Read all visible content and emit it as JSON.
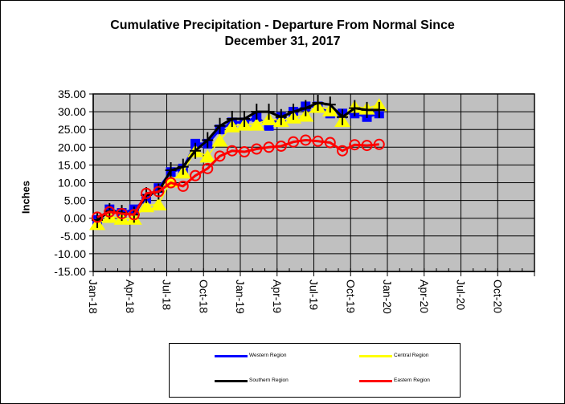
{
  "chart_data": {
    "type": "line",
    "title_line1": "Cumulative Precipitation - Departure From Normal Since",
    "title_line2": "December 31, 2017",
    "ylabel": "Inches",
    "xlabel": "",
    "ylim": [
      -15,
      35
    ],
    "yticks": [
      "35.00",
      "30.00",
      "25.00",
      "20.00",
      "15.00",
      "10.00",
      "5.00",
      "0.00",
      "-5.00",
      "-10.00",
      "-15.00"
    ],
    "ytick_values": [
      35,
      30,
      25,
      20,
      15,
      10,
      5,
      0,
      -5,
      -10,
      -15
    ],
    "xticks": [
      "Jan-18",
      "Apr-18",
      "Jul-18",
      "Oct-18",
      "Jan-19",
      "Apr-19",
      "Jul-19",
      "Oct-19",
      "Jan-20",
      "Apr-20",
      "Jul-20",
      "Oct-20"
    ],
    "x_months_range": [
      0,
      36
    ],
    "grid": true,
    "legend_position": "bottom",
    "x": [
      0,
      1,
      2,
      3,
      4,
      5,
      6,
      7,
      8,
      9,
      10,
      11,
      12,
      13,
      14,
      15,
      16,
      17,
      18,
      19,
      20,
      21,
      22,
      23
    ],
    "series": [
      {
        "name": "Western Region",
        "color": "#0000FF",
        "marker": "square",
        "values": [
          -0.5,
          2.5,
          1.5,
          2.5,
          5.5,
          8.5,
          13,
          14,
          21,
          21,
          25,
          27,
          27,
          28.5,
          26,
          28.5,
          30,
          31.5,
          31.5,
          29.5,
          29.5,
          29.5,
          28.5,
          29.5
        ]
      },
      {
        "name": "Central Region",
        "color": "#FFFF00",
        "marker": "triangle",
        "values": [
          -1.5,
          0.5,
          0,
          0,
          3.5,
          4,
          10.5,
          13,
          19,
          17.5,
          22,
          26,
          26.5,
          26.5,
          28,
          27.5,
          28.5,
          29,
          31.5,
          30.5,
          27.5,
          31.5,
          31,
          32
        ]
      },
      {
        "name": "Southern Region",
        "color": "#000000",
        "marker": "plus",
        "values": [
          -0.5,
          2,
          1.5,
          1,
          6.5,
          7.5,
          13.5,
          14.5,
          19,
          22,
          26,
          28,
          28,
          30,
          30,
          28.5,
          30,
          31,
          32.5,
          32,
          28.5,
          31,
          30.5,
          30.5
        ]
      },
      {
        "name": "Eastern Region",
        "color": "#FF0000",
        "marker": "circle",
        "values": [
          0.3,
          1.8,
          1.3,
          1,
          7,
          7.5,
          10,
          9,
          12,
          14,
          17.5,
          19,
          18.7,
          19.5,
          20,
          20.3,
          21.5,
          22,
          21.7,
          21.3,
          19,
          20.7,
          20.5,
          20.8
        ]
      }
    ],
    "plot_bg": "#C0C0C0"
  }
}
